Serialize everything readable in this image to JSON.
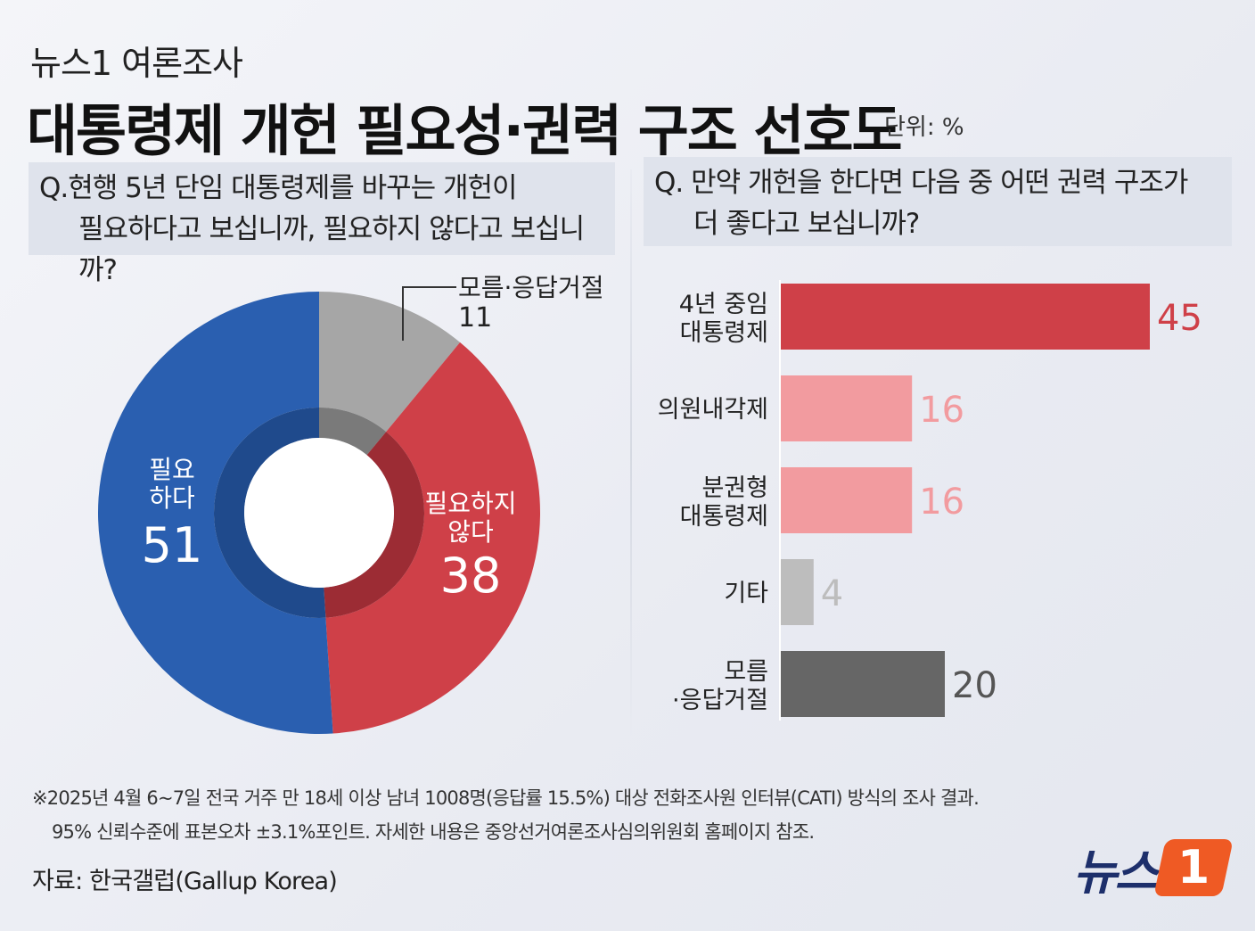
{
  "header": {
    "kicker": "뉴스1 여론조사",
    "title": "대통령제 개헌 필요성·권력 구조 선호도",
    "unit": "단위: %"
  },
  "left_question": {
    "line1": "Q.현행 5년 단임 대통령제를 바꾸는 개헌이",
    "line2": "필요하다고 보십니까, 필요하지 않다고 보십니까?"
  },
  "right_question": {
    "line1": "Q. 만약 개헌을 한다면 다음 중 어떤 권력 구조가",
    "line2": "더 좋다고 보십니까?"
  },
  "colors": {
    "blue": "#2a5fb0",
    "blue_inner": "#1f4a8c",
    "red": "#cf4048",
    "red_inner": "#9c2c34",
    "gray": "#a6a6a6",
    "gray_inner": "#7a7a7a",
    "pink": "#f29b9f",
    "light_gray": "#bdbdbd",
    "dark_gray": "#666666"
  },
  "chart_data": [
    {
      "type": "pie",
      "slices": [
        {
          "label_line1": "모름·응답거절",
          "label_line2": "",
          "value": 11,
          "color": "#a6a6a6",
          "inner": "#7a7a7a"
        },
        {
          "label_line1": "필요하지",
          "label_line2": "않다",
          "value": 38,
          "color": "#cf4048",
          "inner": "#9c2c34"
        },
        {
          "label_line1": "필요",
          "label_line2": "하다",
          "value": 51,
          "color": "#2a5fb0",
          "inner": "#1f4a8c"
        }
      ]
    },
    {
      "type": "bar",
      "orientation": "horizontal",
      "categories": [
        {
          "line1": "4년 중임",
          "line2": "대통령제"
        },
        {
          "line1": "의원내각제",
          "line2": ""
        },
        {
          "line1": "분권형",
          "line2": "대통령제"
        },
        {
          "line1": "기타",
          "line2": ""
        },
        {
          "line1": "모름",
          "line2": "·응답거절"
        }
      ],
      "values": [
        45,
        16,
        16,
        4,
        20
      ],
      "bar_colors": [
        "#cf4048",
        "#f29b9f",
        "#f29b9f",
        "#bdbdbd",
        "#666666"
      ],
      "label_colors": [
        "#cf4048",
        "#f29b9f",
        "#f29b9f",
        "#bdbdbd",
        "#555555"
      ]
    }
  ],
  "footnote": {
    "line1": "※2025년 4월 6~7일 전국 거주 만 18세 이상 남녀 1008명(응답률 15.5%) 대상 전화조사원 인터뷰(CATI) 방식의 조사 결과.",
    "line2": "95% 신뢰수준에 표본오차 ±3.1%포인트. 자세한 내용은 중앙선거여론조사심의위원회 홈페이지 참조."
  },
  "source": "자료: 한국갤럽(Gallup Korea)",
  "logo": {
    "text": "뉴스",
    "badge": "1"
  }
}
